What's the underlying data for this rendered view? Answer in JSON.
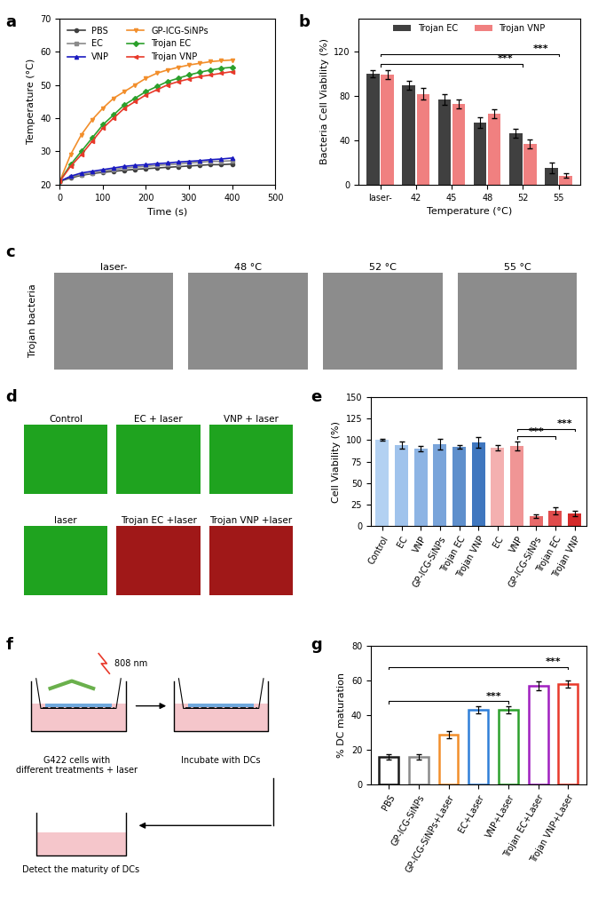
{
  "chart_data": [
    {
      "panel": "a",
      "type": "line",
      "x_label": "Time (s)",
      "y_label": "Temperature (°C)",
      "x": [
        0,
        25,
        50,
        75,
        100,
        125,
        150,
        175,
        200,
        225,
        250,
        275,
        300,
        325,
        350,
        375,
        400
      ],
      "series": [
        {
          "name": "PBS",
          "color": "#404040",
          "marker": "o",
          "values": [
            21,
            22,
            22.8,
            23.3,
            23.7,
            24,
            24.3,
            24.6,
            24.8,
            25,
            25.2,
            25.4,
            25.6,
            25.8,
            26,
            26,
            26.2
          ]
        },
        {
          "name": "EC",
          "color": "#8a8a8a",
          "marker": "s",
          "values": [
            21,
            22.3,
            23,
            23.5,
            24,
            24.5,
            25,
            25.3,
            25.5,
            25.8,
            26,
            26.2,
            26.5,
            26.7,
            27,
            27,
            27.2
          ]
        },
        {
          "name": "VNP",
          "color": "#1a1ac0",
          "marker": "^",
          "values": [
            21,
            22.5,
            23.5,
            24,
            24.5,
            25,
            25.5,
            25.8,
            26,
            26.3,
            26.5,
            26.8,
            27,
            27.2,
            27.5,
            27.7,
            28
          ]
        },
        {
          "name": "GP-ICG-SiNPs",
          "color": "#f28e2b",
          "marker": "v",
          "values": [
            21,
            29,
            35,
            39.5,
            43,
            46,
            48,
            50,
            52,
            53.5,
            54.5,
            55.3,
            56,
            56.5,
            57,
            57.3,
            57.5
          ]
        },
        {
          "name": "Trojan EC",
          "color": "#2ca02c",
          "marker": "D",
          "values": [
            21,
            26,
            30,
            34,
            38,
            41,
            44,
            46,
            48,
            49.5,
            51,
            52,
            53,
            53.8,
            54.5,
            55,
            55.3
          ]
        },
        {
          "name": "Trojan VNP",
          "color": "#e8392a",
          "marker": "<",
          "values": [
            21,
            25.5,
            29,
            33,
            37,
            40,
            43,
            45,
            47,
            48.5,
            50,
            51,
            51.8,
            52.5,
            53,
            53.5,
            54
          ]
        }
      ],
      "xlim": [
        0,
        500
      ],
      "xticks": [
        0,
        100,
        200,
        300,
        400,
        500
      ],
      "ylim": [
        20,
        70
      ],
      "yticks": [
        20,
        30,
        40,
        50,
        60,
        70
      ],
      "legend": "upper left"
    },
    {
      "panel": "b",
      "type": "bar",
      "x_label": "Temperature (°C)",
      "y_label": "Bacteria Cell Viability (%)",
      "categories": [
        "laser-",
        "42",
        "45",
        "48",
        "52",
        "55"
      ],
      "series": [
        {
          "name": "Trojan EC",
          "color": "#404040",
          "values": [
            100,
            90,
            77,
            56,
            46,
            15
          ],
          "errors": [
            3,
            4,
            5,
            5,
            4,
            5
          ]
        },
        {
          "name": "Trojan VNP",
          "color": "#f08080",
          "values": [
            99,
            82,
            73,
            64,
            37,
            8
          ],
          "errors": [
            4,
            5,
            4,
            4,
            4,
            2
          ]
        }
      ],
      "ylim": [
        0,
        150
      ],
      "yticks": [
        0,
        40,
        80,
        120
      ],
      "legend": "upper center",
      "annotations": [
        {
          "text": "***",
          "between": [
            0,
            4
          ]
        },
        {
          "text": "***",
          "between": [
            0,
            5
          ]
        }
      ]
    },
    {
      "panel": "e",
      "type": "bar",
      "y_label": "Cell Viability (%)",
      "categories": [
        "Control",
        "EC",
        "VNP",
        "GP-ICG-SiNPs",
        "Trojan EC",
        "Trojan VNP",
        "EC",
        "VNP",
        "GP-ICG-SiNPs",
        "Trojan EC",
        "Trojan VNP"
      ],
      "values": [
        100,
        94,
        90,
        95,
        92,
        97,
        91,
        93,
        12,
        18,
        15
      ],
      "errors": [
        1,
        4,
        3,
        6,
        2,
        6,
        3,
        5,
        2,
        4,
        3
      ],
      "colors": [
        "#b3d1f2",
        "#a0c3ec",
        "#8db4e4",
        "#79a4da",
        "#5e8fcc",
        "#3f77bf",
        "#f4b0b0",
        "#f09595",
        "#e86a6a",
        "#e04c4c",
        "#d42a2a"
      ],
      "ylim": [
        0,
        150
      ],
      "yticks": [
        0,
        25,
        50,
        75,
        100,
        125,
        150
      ],
      "annotations": [
        {
          "text": "***",
          "between": [
            7,
            9
          ]
        },
        {
          "text": "***",
          "between": [
            7,
            10
          ]
        }
      ]
    },
    {
      "panel": "g",
      "type": "bar",
      "y_label": "% DC maturation",
      "categories": [
        "PBS",
        "GP-ICG-SiNPs",
        "GP-ICG-SiNPs+Laser",
        "EC+Laser",
        "VNP+Laser",
        "Trojan EC+Laser",
        "Trojan VNP+Laser"
      ],
      "values": [
        16,
        16,
        29,
        43,
        43,
        57,
        58
      ],
      "errors": [
        1.5,
        1.5,
        2,
        2,
        2,
        2.5,
        2
      ],
      "colors": [
        "#1a1a1a",
        "#8a8a8a",
        "#f28e2b",
        "#2f7fd8",
        "#2ca02c",
        "#a020c0",
        "#e8392a"
      ],
      "ylim": [
        0,
        80
      ],
      "yticks": [
        0,
        20,
        40,
        60,
        80
      ],
      "annotations": [
        {
          "text": "***",
          "between": [
            0,
            4
          ]
        },
        {
          "text": "***",
          "between": [
            0,
            6
          ]
        }
      ]
    }
  ],
  "image_panels": [
    {
      "panel": "c",
      "row_label": "Trojan bacteria",
      "images": [
        {
          "title": "laser-",
          "color": "#8c8c8c"
        },
        {
          "title": "48 °C",
          "color": "#8c8c8c"
        },
        {
          "title": "52 °C",
          "color": "#8c8c8c"
        },
        {
          "title": "55 °C",
          "color": "#8c8c8c"
        }
      ]
    },
    {
      "panel": "d",
      "images": [
        {
          "title": "Control",
          "color": "#1fa31f"
        },
        {
          "title": "EC + laser",
          "color": "#1fa31f"
        },
        {
          "title": "VNP + laser",
          "color": "#1fa31f"
        },
        {
          "title": "laser",
          "color": "#1fa31f"
        },
        {
          "title": "Trojan EC +laser",
          "color": "#a01818"
        },
        {
          "title": "Trojan VNP +laser",
          "color": "#a01818"
        }
      ]
    }
  ],
  "diagram": {
    "panel": "f",
    "laser": "808 nm",
    "steps": [
      "G422 cells with\ndifferent treatments + laser",
      "Incubate with DCs",
      "Detect the maturity of DCs"
    ]
  }
}
